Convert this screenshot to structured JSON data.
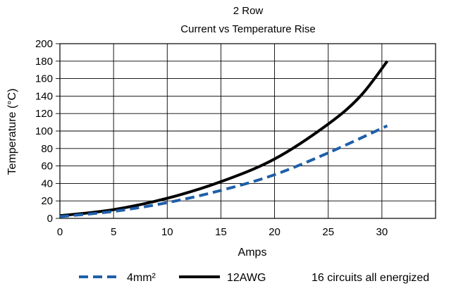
{
  "chart_data": {
    "type": "line",
    "title": "2 Row",
    "subtitle": "Current vs Temperature Rise",
    "xlabel": "Amps",
    "ylabel": "Temperature (°C)",
    "xlim": [
      0,
      35
    ],
    "ylim": [
      0,
      200
    ],
    "x_ticks": [
      0,
      5,
      10,
      15,
      20,
      25,
      30
    ],
    "y_ticks": [
      0,
      20,
      40,
      60,
      80,
      100,
      120,
      140,
      160,
      180,
      200
    ],
    "grid": true,
    "legend_placement": "bottom",
    "note": "16 circuits all energized",
    "series": [
      {
        "name": "4mm²",
        "style": "dashed",
        "color": "#1f5fa8",
        "x": [
          0,
          5,
          10,
          15,
          20,
          25,
          30.5
        ],
        "y": [
          2,
          8,
          18,
          32,
          50,
          75,
          106
        ]
      },
      {
        "name": "12AWG",
        "style": "solid",
        "color": "#000000",
        "x": [
          0,
          5,
          10,
          15,
          20,
          25,
          28,
          30.5
        ],
        "y": [
          3,
          10,
          23,
          42,
          68,
          108,
          140,
          180
        ]
      }
    ]
  }
}
